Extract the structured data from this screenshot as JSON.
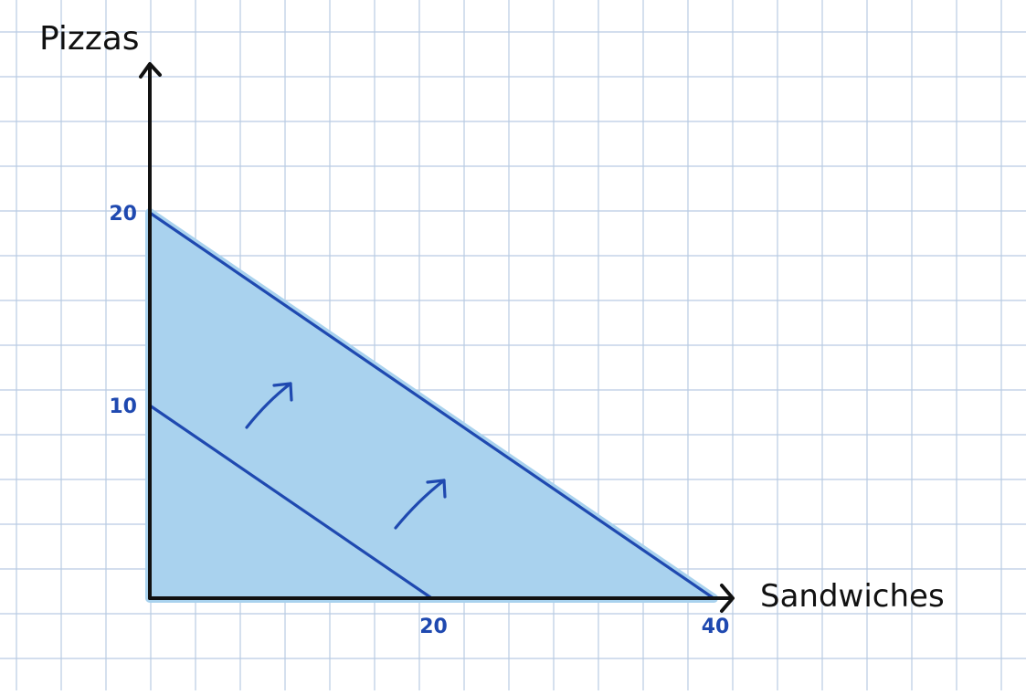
{
  "chart_data": {
    "type": "line",
    "xlabel": "Sandwiches",
    "ylabel": "Pizzas",
    "xlim": [
      0,
      40
    ],
    "ylim": [
      0,
      20
    ],
    "x_ticks": [
      {
        "value": 20,
        "label": "20"
      },
      {
        "value": 40,
        "label": "40"
      }
    ],
    "y_ticks": [
      {
        "value": 10,
        "label": "10"
      },
      {
        "value": 20,
        "label": "20"
      }
    ],
    "series": [
      {
        "values": [
          {
            "x": 0,
            "y": 10
          },
          {
            "x": 20,
            "y": 0
          }
        ]
      },
      {
        "values": [
          {
            "x": 0,
            "y": 20
          },
          {
            "x": 40,
            "y": 0
          }
        ]
      }
    ],
    "shaded_region": [
      {
        "x": 0,
        "y": 0
      },
      {
        "x": 0,
        "y": 20
      },
      {
        "x": 40,
        "y": 0
      }
    ],
    "annotations": [
      {
        "type": "arrow",
        "direction": "up-right"
      },
      {
        "type": "arrow",
        "direction": "up-right"
      }
    ],
    "grid": true,
    "colors": {
      "line": "#1f49b0",
      "fill": "#a9d2ee",
      "grid": "#b9cbe3",
      "axis": "#111111",
      "tick_label": "#1f49b0"
    }
  }
}
